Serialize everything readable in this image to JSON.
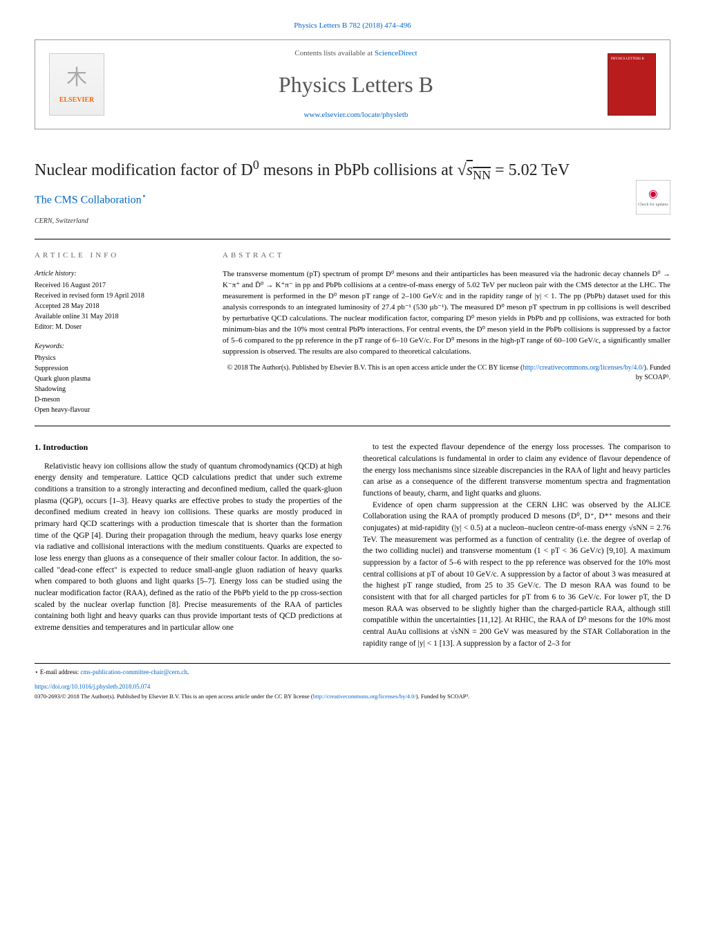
{
  "header": {
    "citation_link": "Physics Letters B 782 (2018) 474–496",
    "contents_prefix": "Contents lists available at ",
    "contents_site": "ScienceDirect",
    "journal_title": "Physics Letters B",
    "homepage_url": "www.elsevier.com/locate/physletb",
    "publisher_name": "ELSEVIER",
    "cover_label": "PHYSICS LETTERS B"
  },
  "article": {
    "title_html": "Nuclear modification factor of D⁰ mesons in PbPb collisions at √s<sub>NN</sub> = 5.02 TeV",
    "authors": "The CMS Collaboration",
    "author_marker": "⋆",
    "affiliation": "CERN, Switzerland",
    "check_updates": "Check for updates"
  },
  "info": {
    "heading": "ARTICLE INFO",
    "history_label": "Article history:",
    "received": "Received 16 August 2017",
    "revised": "Received in revised form 19 April 2018",
    "accepted": "Accepted 28 May 2018",
    "online": "Available online 31 May 2018",
    "editor": "Editor: M. Doser",
    "keywords_label": "Keywords:",
    "keywords": [
      "Physics",
      "Suppression",
      "Quark gluon plasma",
      "Shadowing",
      "D-meson",
      "Open heavy-flavour"
    ]
  },
  "abstract": {
    "heading": "ABSTRACT",
    "text": "The transverse momentum (pT) spectrum of prompt D⁰ mesons and their antiparticles has been measured via the hadronic decay channels D⁰ → K⁻π⁺ and D̄⁰ → K⁺π⁻ in pp and PbPb collisions at a centre-of-mass energy of 5.02 TeV per nucleon pair with the CMS detector at the LHC. The measurement is performed in the D⁰ meson pT range of 2–100 GeV/c and in the rapidity range of |y| < 1. The pp (PbPb) dataset used for this analysis corresponds to an integrated luminosity of 27.4 pb⁻¹ (530 µb⁻¹). The measured D⁰ meson pT spectrum in pp collisions is well described by perturbative QCD calculations. The nuclear modification factor, comparing D⁰ meson yields in PbPb and pp collisions, was extracted for both minimum-bias and the 10% most central PbPb interactions. For central events, the D⁰ meson yield in the PbPb collisions is suppressed by a factor of 5–6 compared to the pp reference in the pT range of 6–10 GeV/c. For D⁰ mesons in the high-pT range of 60–100 GeV/c, a significantly smaller suppression is observed. The results are also compared to theoretical calculations.",
    "license_prefix": "© 2018 The Author(s). Published by Elsevier B.V. This is an open access article under the CC BY license (",
    "license_url": "http://creativecommons.org/licenses/by/4.0/",
    "license_suffix": "). Funded by SCOAP³."
  },
  "body": {
    "section1_heading": "1. Introduction",
    "p1": "Relativistic heavy ion collisions allow the study of quantum chromodynamics (QCD) at high energy density and temperature. Lattice QCD calculations predict that under such extreme conditions a transition to a strongly interacting and deconfined medium, called the quark-gluon plasma (QGP), occurs [1–3]. Heavy quarks are effective probes to study the properties of the deconfined medium created in heavy ion collisions. These quarks are mostly produced in primary hard QCD scatterings with a production timescale that is shorter than the formation time of the QGP [4]. During their propagation through the medium, heavy quarks lose energy via radiative and collisional interactions with the medium constituents. Quarks are expected to lose less energy than gluons as a consequence of their smaller colour factor. In addition, the so-called \"dead-cone effect\" is expected to reduce small-angle gluon radiation of heavy quarks when compared to both gluons and light quarks [5–7]. Energy loss can be studied using the nuclear modification factor (RAA), defined as the ratio of the PbPb yield to the pp cross-section scaled by the nuclear overlap function [8]. Precise measurements of the RAA of particles containing both light and heavy quarks can thus provide important tests of QCD predictions at extreme densities and temperatures and in particular allow one",
    "p2": "to test the expected flavour dependence of the energy loss processes. The comparison to theoretical calculations is fundamental in order to claim any evidence of flavour dependence of the energy loss mechanisms since sizeable discrepancies in the RAA of light and heavy particles can arise as a consequence of the different transverse momentum spectra and fragmentation functions of beauty, charm, and light quarks and gluons.",
    "p3": "Evidence of open charm suppression at the CERN LHC was observed by the ALICE Collaboration using the RAA of promptly produced D mesons (D⁰, D⁺, D*⁺ mesons and their conjugates) at mid-rapidity (|y| < 0.5) at a nucleon–nucleon centre-of-mass energy √sNN = 2.76 TeV. The measurement was performed as a function of centrality (i.e. the degree of overlap of the two colliding nuclei) and transverse momentum (1 < pT < 36 GeV/c) [9,10]. A maximum suppression by a factor of 5–6 with respect to the pp reference was observed for the 10% most central collisions at pT of about 10 GeV/c. A suppression by a factor of about 3 was measured at the highest pT range studied, from 25 to 35 GeV/c. The D meson RAA was found to be consistent with that for all charged particles for pT from 6 to 36 GeV/c. For lower pT, the D meson RAA was observed to be slightly higher than the charged-particle RAA, although still compatible within the uncertainties [11,12]. At RHIC, the RAA of D⁰ mesons for the 10% most central AuAu collisions at √sNN = 200 GeV was measured by the STAR Collaboration in the rapidity range of |y| < 1 [13]. A suppression by a factor of 2–3 for"
  },
  "footer": {
    "corresponding_label": "⋆ E-mail address:",
    "corresponding_email": "cms-publication-committee-chair@cern.ch",
    "doi": "https://doi.org/10.1016/j.physletb.2018.05.074",
    "copyright": "0370-2693/© 2018 The Author(s). Published by Elsevier B.V. This is an open access article under the CC BY license (",
    "cc_url": "http://creativecommons.org/licenses/by/4.0/",
    "copyright_suffix": "). Funded by SCOAP³."
  },
  "colors": {
    "link": "#0066cc",
    "publisher_orange": "#ff6600",
    "cover_red": "#b91c1c",
    "heading_gray": "#666666",
    "text": "#000000"
  }
}
